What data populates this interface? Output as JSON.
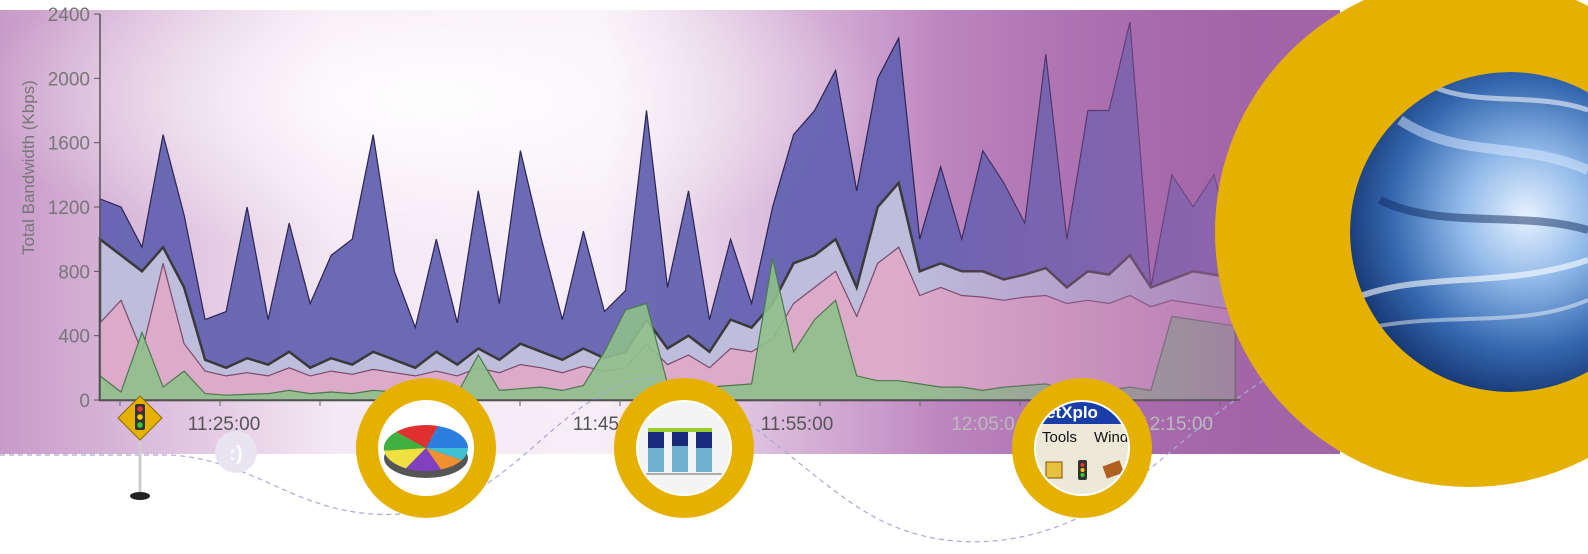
{
  "chart_data": {
    "type": "area",
    "ylabel": "Total Bandwidth (Kbps)",
    "ylim": [
      0,
      2400
    ],
    "y_ticks": [
      "0",
      "400",
      "800",
      "1200",
      "1600",
      "2000",
      "2400"
    ],
    "x_ticks": [
      "11:25:00",
      "11:45",
      "11:55:00",
      "12:05:0",
      "12:15:00"
    ],
    "grid": false,
    "series": [
      {
        "values": [
          1250,
          1200,
          950,
          1650,
          1150,
          500,
          550,
          1200,
          500,
          1100,
          600,
          900,
          1000,
          1650,
          800,
          450,
          1000,
          480,
          1300,
          600,
          1550,
          1000,
          500,
          1050,
          550,
          680,
          1800,
          700,
          1300,
          500,
          1000,
          600,
          1200,
          1650,
          1800,
          2050,
          1300,
          2000,
          2250,
          1000,
          1450,
          1000,
          1550,
          1350,
          1100,
          2150,
          1000,
          1800,
          1800,
          2350,
          700,
          1400,
          1200,
          1400,
          900
        ]
      },
      {
        "values": [
          1000,
          900,
          800,
          950,
          700,
          250,
          200,
          260,
          220,
          300,
          200,
          260,
          220,
          300,
          250,
          200,
          300,
          220,
          320,
          250,
          350,
          300,
          250,
          320,
          260,
          300,
          500,
          320,
          400,
          300,
          500,
          450,
          600,
          850,
          900,
          1000,
          700,
          1200,
          1350,
          800,
          850,
          800,
          800,
          750,
          780,
          820,
          700,
          800,
          780,
          900,
          700,
          750,
          800,
          780,
          760
        ]
      },
      {
        "values": [
          480,
          620,
          300,
          850,
          350,
          180,
          150,
          170,
          150,
          200,
          150,
          180,
          160,
          190,
          170,
          150,
          180,
          150,
          200,
          170,
          220,
          200,
          170,
          210,
          180,
          200,
          350,
          220,
          280,
          200,
          320,
          300,
          380,
          600,
          700,
          800,
          520,
          850,
          950,
          650,
          700,
          650,
          640,
          620,
          640,
          650,
          600,
          620,
          600,
          650,
          580,
          620,
          600,
          580,
          560
        ]
      },
      {
        "values": [
          150,
          50,
          420,
          80,
          180,
          40,
          30,
          35,
          40,
          60,
          40,
          50,
          40,
          60,
          50,
          40,
          80,
          40,
          280,
          60,
          70,
          80,
          60,
          90,
          300,
          560,
          600,
          100,
          90,
          80,
          90,
          100,
          880,
          300,
          500,
          620,
          150,
          120,
          120,
          100,
          80,
          80,
          60,
          80,
          90,
          100,
          60,
          80,
          60,
          80,
          60,
          520,
          500,
          480,
          460
        ]
      }
    ]
  },
  "toolbar_menu": [
    "Tools",
    "Wind"
  ],
  "app_title": "etXplo",
  "colors": {
    "accent_gold": "#e6b000",
    "background_purple": "#a365a8",
    "series_top": "#6462b1",
    "series_light": "#c8c8e0",
    "series_pink": "#e0a8c8",
    "series_green": "#8fc08c"
  },
  "icons": [
    "traffic-light-sign-icon",
    "smiley-icon",
    "pie-chart-thumbnail",
    "bar-chart-thumbnail",
    "toolbar-thumbnail",
    "globe-photo"
  ]
}
